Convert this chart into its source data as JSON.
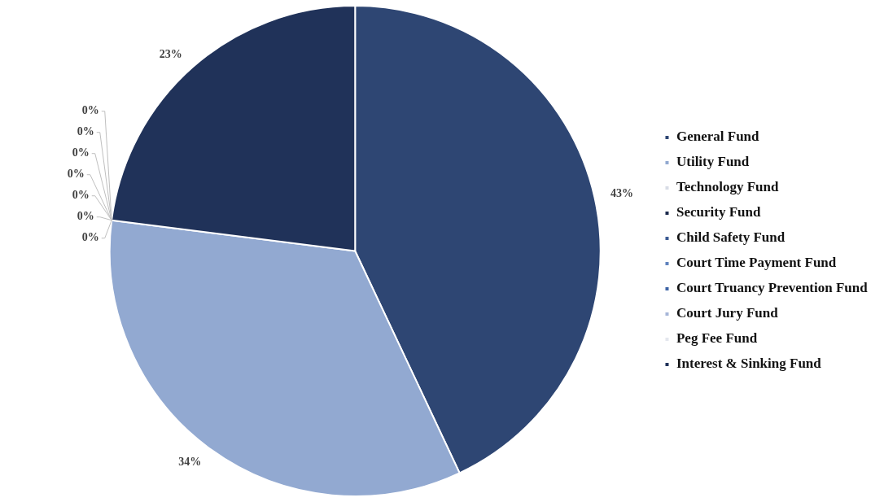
{
  "chart_data": {
    "type": "pie",
    "categories": [
      "General Fund",
      "Utility Fund",
      "Technology Fund",
      "Security Fund",
      "Child Safety Fund",
      "Court Time Payment Fund",
      "Court Truancy Prevention Fund",
      "Court Jury Fund",
      "Peg Fee Fund",
      "Interest & Sinking Fund"
    ],
    "values": [
      43,
      34,
      0,
      0,
      0,
      0,
      0,
      0,
      0,
      23
    ],
    "colors": [
      "#2e4673",
      "#92a9d1",
      "#d8dce6",
      "#1c2a4c",
      "#3b5a93",
      "#5f82bd",
      "#3e64a6",
      "#a6b6d8",
      "#e4e7ee",
      "#203259"
    ],
    "value_labels": [
      "43%",
      "34%",
      "0%",
      "0%",
      "0%",
      "0%",
      "0%",
      "0%",
      "0%",
      "23%"
    ],
    "legend": "right"
  }
}
